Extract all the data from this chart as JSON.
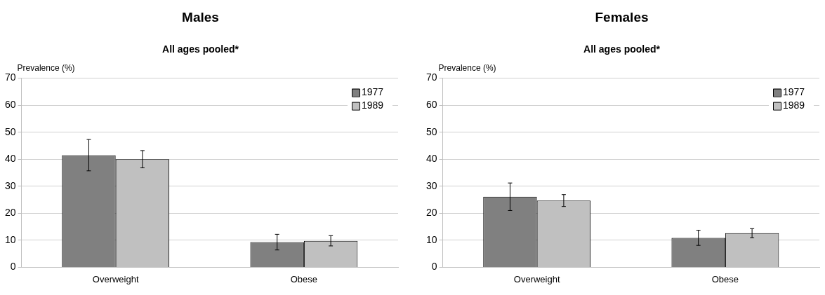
{
  "chart_data": [
    {
      "type": "bar",
      "title": "Males",
      "subtitle": "All ages pooled*",
      "ylabel": "Prevalence (%)",
      "categories": [
        "Overweight",
        "Obese"
      ],
      "series": [
        {
          "name": "1977",
          "color": "#808080",
          "values": [
            41.5,
            9.3
          ],
          "errors": [
            5.8,
            2.9
          ]
        },
        {
          "name": "1989",
          "color": "#c0c0c0",
          "values": [
            40.0,
            9.8
          ],
          "errors": [
            3.2,
            1.9
          ]
        }
      ],
      "ylim": [
        0,
        70
      ],
      "yticks": [
        0,
        10,
        20,
        30,
        40,
        50,
        60,
        70
      ],
      "grid": "y",
      "legend": "top right"
    },
    {
      "type": "bar",
      "title": "Females",
      "subtitle": "All ages pooled*",
      "ylabel": "Prevalence (%)",
      "categories": [
        "Overweight",
        "Obese"
      ],
      "series": [
        {
          "name": "1977",
          "color": "#808080",
          "values": [
            26.1,
            10.9
          ],
          "errors": [
            5.1,
            2.8
          ]
        },
        {
          "name": "1989",
          "color": "#c0c0c0",
          "values": [
            24.7,
            12.6
          ],
          "errors": [
            2.2,
            1.7
          ]
        }
      ],
      "ylim": [
        0,
        70
      ],
      "yticks": [
        0,
        10,
        20,
        30,
        40,
        50,
        60,
        70
      ],
      "grid": "y",
      "legend": "top right"
    }
  ]
}
